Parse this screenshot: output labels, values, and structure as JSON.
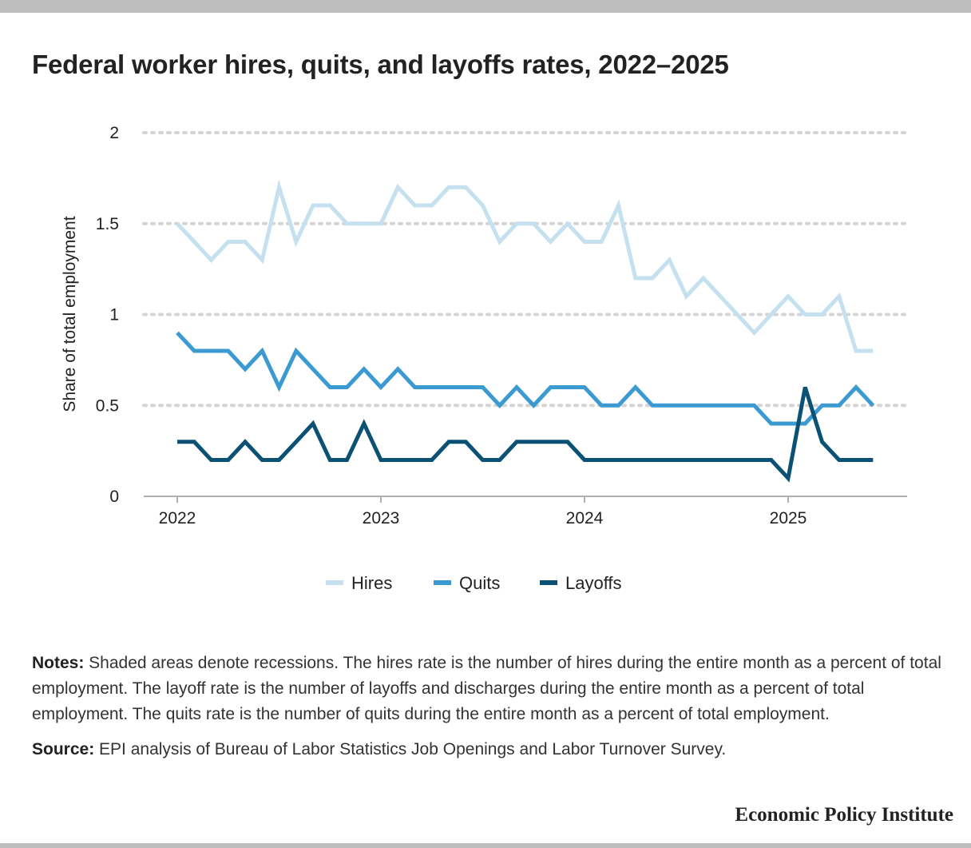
{
  "title": "Federal worker hires, quits, and layoffs rates, 2022–2025",
  "chart_data": {
    "type": "line",
    "ylabel": "Share of total employment",
    "xlabel": "",
    "ylim": [
      0,
      2
    ],
    "yticks": [
      "0",
      "0.5",
      "1",
      "1.5",
      "2"
    ],
    "xticks": [
      "2022",
      "2023",
      "2024",
      "2025"
    ],
    "x_start": "2022-01",
    "grid": "horizontal dotted",
    "legend_position": "bottom-center",
    "series": [
      {
        "name": "Hires",
        "color": "#c5e1ef",
        "values": [
          1.5,
          1.4,
          1.3,
          1.4,
          1.4,
          1.3,
          1.7,
          1.4,
          1.6,
          1.6,
          1.5,
          1.5,
          1.5,
          1.7,
          1.6,
          1.6,
          1.7,
          1.7,
          1.6,
          1.4,
          1.5,
          1.5,
          1.4,
          1.5,
          1.4,
          1.4,
          1.6,
          1.2,
          1.2,
          1.3,
          1.1,
          1.2,
          1.1,
          1.0,
          0.9,
          1.0,
          1.1,
          1.0,
          1.0,
          1.1,
          0.8,
          0.8
        ]
      },
      {
        "name": "Quits",
        "color": "#3a9ad1",
        "values": [
          0.9,
          0.8,
          0.8,
          0.8,
          0.7,
          0.8,
          0.6,
          0.8,
          0.7,
          0.6,
          0.6,
          0.7,
          0.6,
          0.7,
          0.6,
          0.6,
          0.6,
          0.6,
          0.6,
          0.5,
          0.6,
          0.5,
          0.6,
          0.6,
          0.6,
          0.5,
          0.5,
          0.6,
          0.5,
          0.5,
          0.5,
          0.5,
          0.5,
          0.5,
          0.5,
          0.4,
          0.4,
          0.4,
          0.5,
          0.5,
          0.6,
          0.5
        ]
      },
      {
        "name": "Layoffs",
        "color": "#0b5174",
        "values": [
          0.3,
          0.3,
          0.2,
          0.2,
          0.3,
          0.2,
          0.2,
          0.3,
          0.4,
          0.2,
          0.2,
          0.4,
          0.2,
          0.2,
          0.2,
          0.2,
          0.3,
          0.3,
          0.2,
          0.2,
          0.3,
          0.3,
          0.3,
          0.3,
          0.2,
          0.2,
          0.2,
          0.2,
          0.2,
          0.2,
          0.2,
          0.2,
          0.2,
          0.2,
          0.2,
          0.2,
          0.1,
          0.6,
          0.3,
          0.2,
          0.2,
          0.2
        ]
      }
    ]
  },
  "notes": {
    "label": "Notes:",
    "text": " Shaded areas denote recessions. The hires rate is the number of hires during the entire month as a percent of total employment. The layoff rate is the number of layoffs and discharges during the entire month as a percent of total employment. The quits rate is the number of quits during the entire month as a percent of total employment."
  },
  "source": {
    "label": "Source:",
    "text": " EPI analysis of Bureau of Labor Statistics Job Openings and Labor Turnover Survey."
  },
  "brand": "Economic Policy Institute"
}
